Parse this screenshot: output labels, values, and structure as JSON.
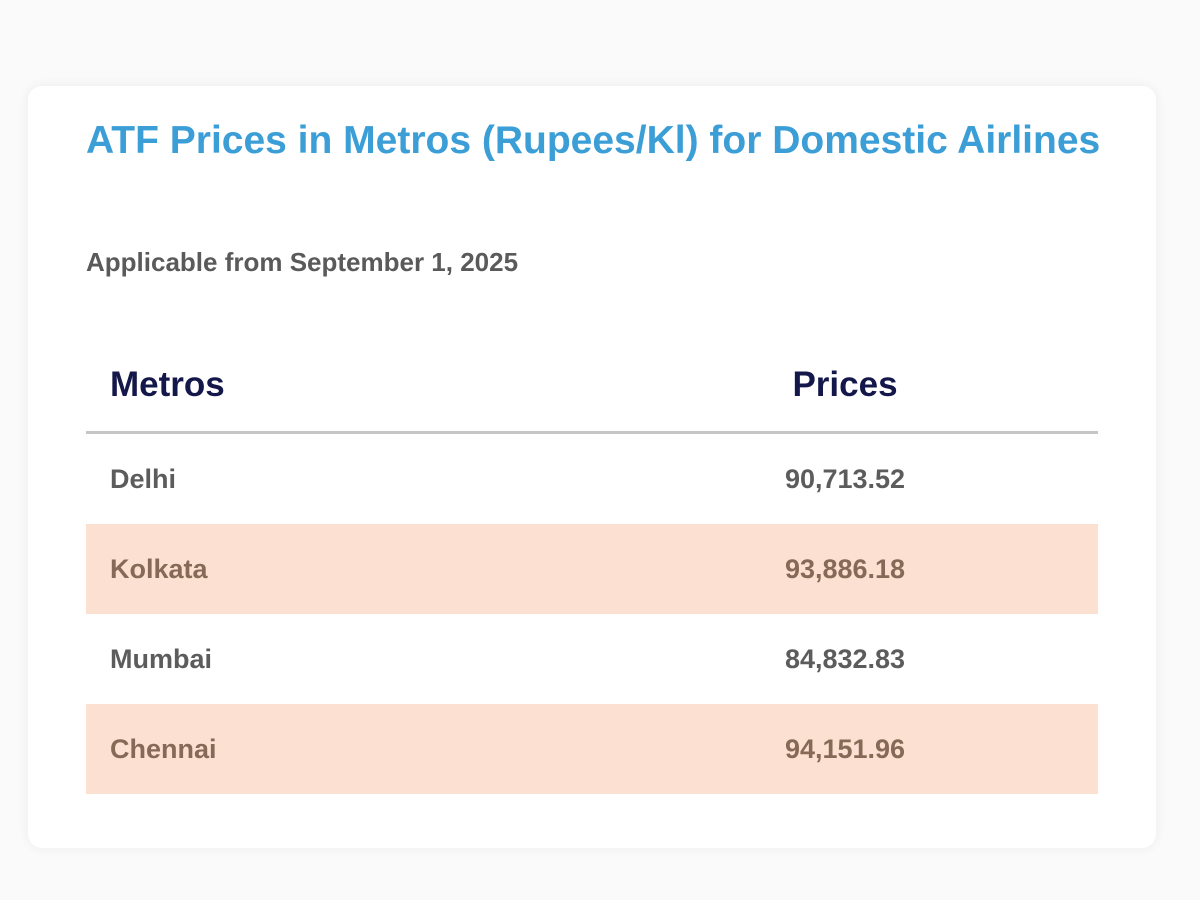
{
  "title": "ATF Prices in Metros (Rupees/Kl) for Domestic Airlines",
  "subtitle": "Applicable from September 1, 2025",
  "table": {
    "headers": [
      "Metros",
      "Prices"
    ],
    "rows": [
      {
        "metro": "Delhi",
        "price": "90,713.52"
      },
      {
        "metro": "Kolkata",
        "price": "93,886.18"
      },
      {
        "metro": "Mumbai",
        "price": "84,832.83"
      },
      {
        "metro": "Chennai",
        "price": "94,151.96"
      }
    ]
  },
  "colors": {
    "title": "#3b9ed6",
    "header_text": "#14174a",
    "alt_row_background": "#fce0d1"
  }
}
